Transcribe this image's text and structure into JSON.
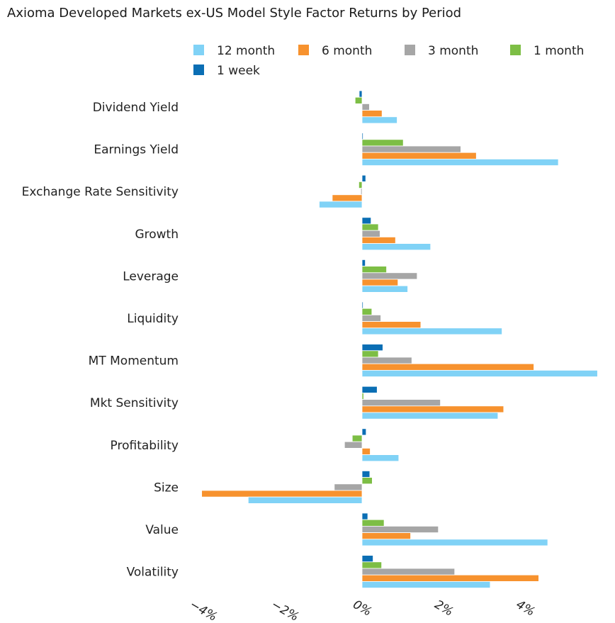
{
  "chart_data": {
    "type": "bar",
    "orientation": "horizontal",
    "title": "Axioma Developed Markets ex-US Model Style Factor Returns by Period",
    "xlabel": "",
    "ylabel": "",
    "xlim": [
      -4.3,
      5.8
    ],
    "x_ticks": [
      -4,
      -2,
      0,
      2,
      4
    ],
    "x_tick_labels": [
      "−4%",
      "−2%",
      "0%",
      "2%",
      "4%"
    ],
    "categories": [
      "Dividend Yield",
      "Earnings Yield",
      "Exchange Rate Sensitivity",
      "Growth",
      "Leverage",
      "Liquidity",
      "MT Momentum",
      "Mkt Sensitivity",
      "Profitability",
      "Size",
      "Value",
      "Volatility"
    ],
    "legend_position": "top",
    "grid": false,
    "series": [
      {
        "name": "1 week",
        "color": "#0A6EB4",
        "values": [
          -0.07,
          0.02,
          0.09,
          0.22,
          0.08,
          0.0,
          0.51,
          0.37,
          0.1,
          0.19,
          0.14,
          0.27
        ]
      },
      {
        "name": "1 month",
        "color": "#7DBE45",
        "values": [
          -0.17,
          1.01,
          -0.08,
          0.4,
          0.6,
          0.24,
          0.4,
          0.04,
          -0.24,
          0.25,
          0.54,
          0.48
        ]
      },
      {
        "name": "3 month",
        "color": "#A6A6A6",
        "values": [
          0.18,
          2.42,
          -0.03,
          0.44,
          1.35,
          0.46,
          1.22,
          1.92,
          -0.43,
          -0.68,
          1.87,
          2.27
        ]
      },
      {
        "name": "6 month",
        "color": "#F7922E",
        "values": [
          0.49,
          2.8,
          -0.73,
          0.82,
          0.88,
          1.44,
          4.21,
          3.47,
          0.2,
          -3.93,
          1.19,
          4.33
        ]
      },
      {
        "name": "12 month",
        "color": "#80D2F6",
        "values": [
          0.86,
          4.81,
          -1.05,
          1.68,
          1.12,
          3.43,
          5.77,
          3.33,
          0.9,
          -2.79,
          4.55,
          3.14
        ]
      }
    ],
    "legend_order": [
      "12 month",
      "6 month",
      "3 month",
      "1 month",
      "1 week"
    ]
  }
}
